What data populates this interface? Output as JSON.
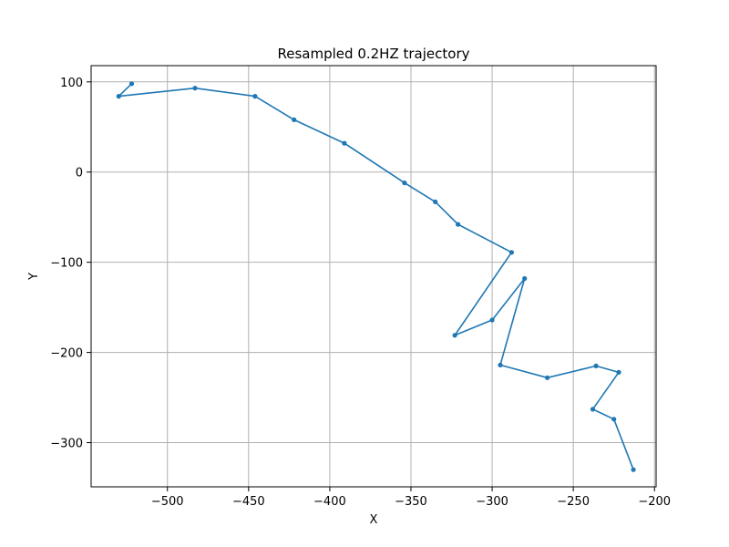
{
  "chart_data": {
    "type": "line",
    "title": "Resampled 0.2HZ trajectory",
    "xlabel": "X",
    "ylabel": "Y",
    "xlim": [
      -547,
      -199
    ],
    "ylim": [
      -349,
      118
    ],
    "xticks": [
      -500,
      -450,
      -400,
      -350,
      -300,
      -250,
      -200
    ],
    "yticks": [
      100,
      0,
      -100,
      -200,
      -300
    ],
    "grid": true,
    "series_color": "#1f77b4",
    "series": [
      {
        "x": [
          -522,
          -530,
          -483,
          -446,
          -422,
          -391,
          -354,
          -335,
          -321,
          -288,
          -323,
          -300,
          -280,
          -295,
          -266,
          -236,
          -222,
          -238,
          -225,
          -213
        ],
        "y": [
          98,
          84,
          93,
          84,
          58,
          32,
          -12,
          -33,
          -58,
          -89,
          -181,
          -164,
          -118,
          -214,
          -228,
          -215,
          -222,
          -263,
          -274,
          -330
        ]
      }
    ]
  }
}
